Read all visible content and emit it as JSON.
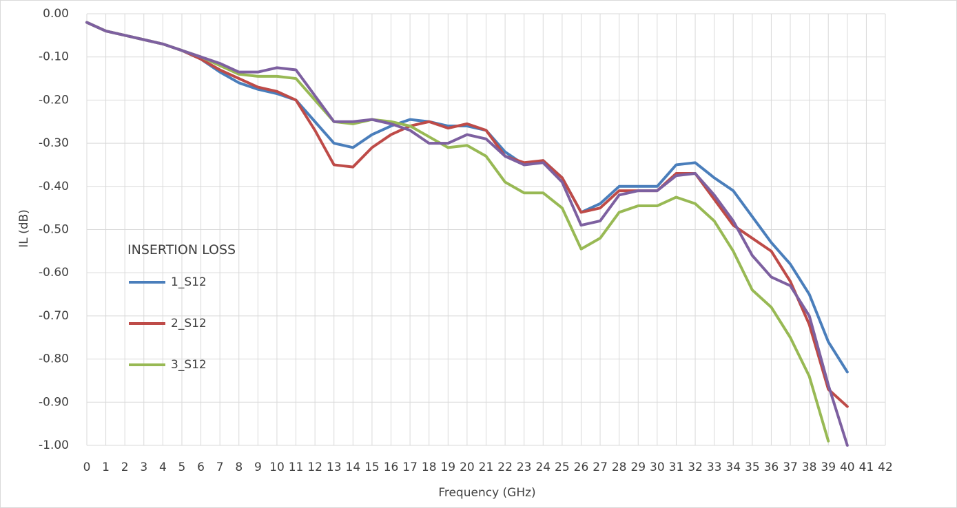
{
  "chart_data": {
    "type": "line",
    "xlabel": "Frequency (GHz)",
    "ylabel": "IL (dB)",
    "legend_title": "INSERTION LOSS",
    "x": [
      0,
      1,
      2,
      3,
      4,
      5,
      6,
      7,
      8,
      9,
      10,
      11,
      12,
      13,
      14,
      15,
      16,
      17,
      18,
      19,
      20,
      21,
      22,
      23,
      24,
      25,
      26,
      27,
      28,
      29,
      30,
      31,
      32,
      33,
      34,
      35,
      36,
      37,
      38,
      39,
      40
    ],
    "series": [
      {
        "name": "1_S12",
        "color": "#4a7ebb",
        "values": [
          -0.02,
          -0.04,
          -0.05,
          -0.06,
          -0.07,
          -0.085,
          -0.105,
          -0.135,
          -0.16,
          -0.175,
          -0.185,
          -0.2,
          -0.25,
          -0.3,
          -0.31,
          -0.28,
          -0.26,
          -0.245,
          -0.25,
          -0.26,
          -0.26,
          -0.27,
          -0.32,
          -0.35,
          -0.34,
          -0.38,
          -0.46,
          -0.44,
          -0.4,
          -0.4,
          -0.4,
          -0.35,
          -0.345,
          -0.38,
          -0.41,
          -0.47,
          -0.53,
          -0.58,
          -0.65,
          -0.76,
          -0.83
        ]
      },
      {
        "name": "2_S12",
        "color": "#be4b48",
        "values": [
          -0.02,
          -0.04,
          -0.05,
          -0.06,
          -0.07,
          -0.085,
          -0.105,
          -0.13,
          -0.15,
          -0.17,
          -0.18,
          -0.2,
          -0.27,
          -0.35,
          -0.355,
          -0.31,
          -0.28,
          -0.26,
          -0.25,
          -0.265,
          -0.255,
          -0.27,
          -0.33,
          -0.345,
          -0.34,
          -0.38,
          -0.46,
          -0.45,
          -0.41,
          -0.41,
          -0.41,
          -0.37,
          -0.37,
          -0.43,
          -0.49,
          -0.52,
          -0.55,
          -0.62,
          -0.72,
          -0.87,
          -0.91
        ]
      },
      {
        "name": "3_S12",
        "color": "#98b954",
        "values": [
          -0.02,
          -0.04,
          -0.05,
          -0.06,
          -0.07,
          -0.085,
          -0.1,
          -0.12,
          -0.14,
          -0.145,
          -0.145,
          -0.15,
          -0.2,
          -0.25,
          -0.255,
          -0.245,
          -0.25,
          -0.26,
          -0.285,
          -0.31,
          -0.305,
          -0.33,
          -0.39,
          -0.415,
          -0.415,
          -0.45,
          -0.545,
          -0.52,
          -0.46,
          -0.445,
          -0.445,
          -0.425,
          -0.44,
          -0.48,
          -0.55,
          -0.64,
          -0.68,
          -0.75,
          -0.84,
          -0.99,
          null
        ]
      },
      {
        "color": "#7d60a0",
        "values": [
          -0.02,
          -0.04,
          -0.05,
          -0.06,
          -0.07,
          -0.085,
          -0.1,
          -0.115,
          -0.135,
          -0.135,
          -0.125,
          -0.13,
          -0.19,
          -0.25,
          -0.25,
          -0.245,
          -0.255,
          -0.27,
          -0.3,
          -0.3,
          -0.28,
          -0.29,
          -0.33,
          -0.35,
          -0.345,
          -0.39,
          -0.49,
          -0.48,
          -0.42,
          -0.41,
          -0.41,
          -0.375,
          -0.37,
          -0.42,
          -0.48,
          -0.56,
          -0.61,
          -0.63,
          -0.7,
          -0.86,
          -1.0
        ]
      }
    ],
    "xlim": [
      0,
      42
    ],
    "xticks": [
      0,
      1,
      2,
      3,
      4,
      5,
      6,
      7,
      8,
      9,
      10,
      11,
      12,
      13,
      14,
      15,
      16,
      17,
      18,
      19,
      20,
      21,
      22,
      23,
      24,
      25,
      26,
      27,
      28,
      29,
      30,
      31,
      32,
      33,
      34,
      35,
      36,
      37,
      38,
      39,
      40,
      41,
      42
    ],
    "ylim": [
      -1.0,
      0
    ],
    "yticks": [
      {
        "value": 0,
        "label": "0.00"
      },
      {
        "value": -0.1,
        "label": "-0.10"
      },
      {
        "value": -0.2,
        "label": "-0.20"
      },
      {
        "value": -0.3,
        "label": "-0.30"
      },
      {
        "value": -0.4,
        "label": "-0.40"
      },
      {
        "value": -0.5,
        "label": "-0.50"
      },
      {
        "value": -0.6,
        "label": "-0.60"
      },
      {
        "value": -0.7,
        "label": "-0.70"
      },
      {
        "value": -0.8,
        "label": "-0.80"
      },
      {
        "value": -0.9,
        "label": "-0.90"
      },
      {
        "value": -1.0,
        "label": "-1.00"
      }
    ],
    "grid": true
  }
}
